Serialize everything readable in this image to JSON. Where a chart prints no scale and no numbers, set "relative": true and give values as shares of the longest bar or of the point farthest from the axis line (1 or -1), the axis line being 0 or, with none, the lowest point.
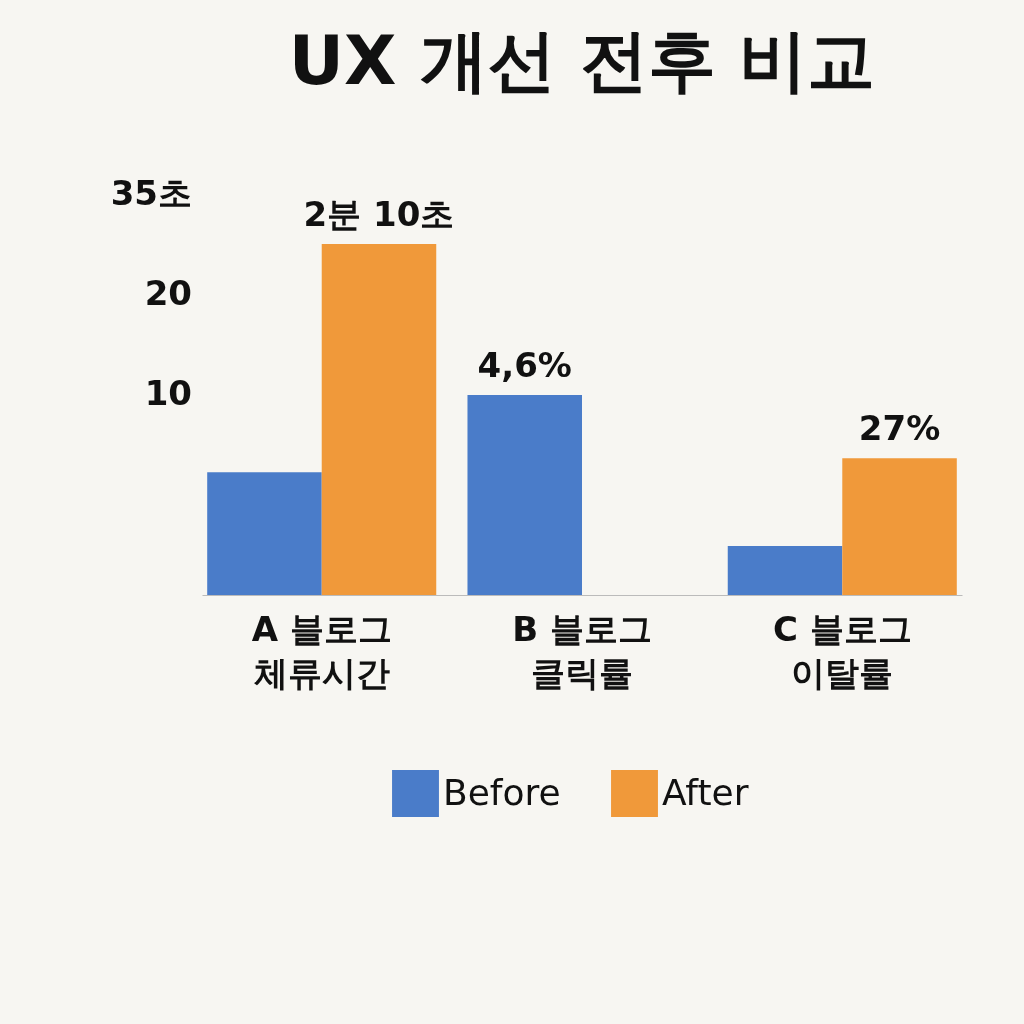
{
  "chart_data": {
    "type": "bar",
    "title": "UX 개선 전후 비교",
    "relative": true,
    "categories": [
      "A 블로그\n체류시간",
      "B 블로그\n클릭률",
      "C 블로그\n이탈률"
    ],
    "series": [
      {
        "name": "Before",
        "color": "#4a7cc9",
        "values": [
          0.35,
          0.57,
          0.14
        ]
      },
      {
        "name": "After",
        "color": "#f0993a",
        "values": [
          1,
          null,
          0.39
        ]
      }
    ],
    "annotations": [
      "35초",
      "20",
      "10",
      "2분 10초",
      "4,6%",
      "27%"
    ],
    "legend": "bottom"
  }
}
